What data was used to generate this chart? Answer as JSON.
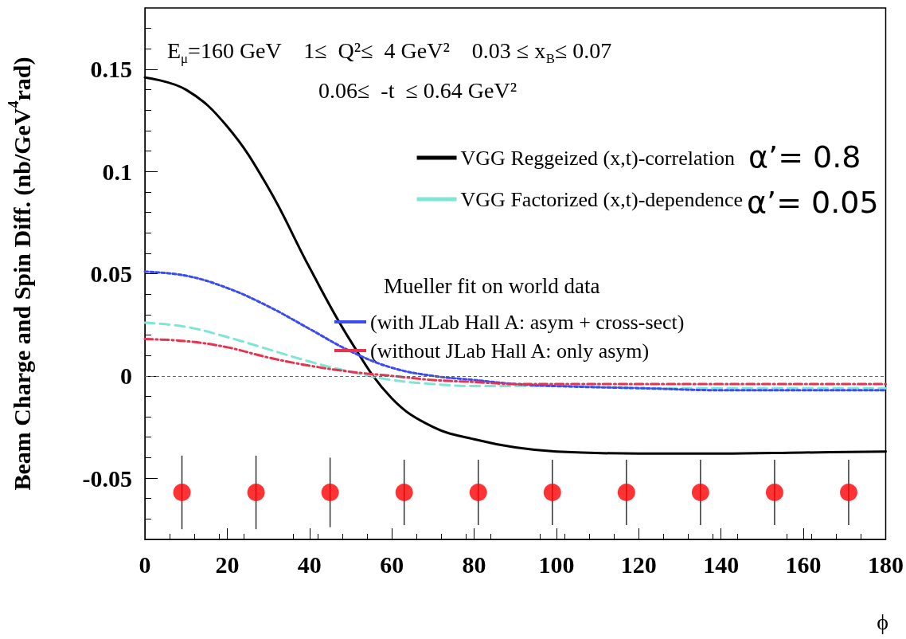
{
  "chart_data": {
    "type": "line",
    "title": "E$_{μ}$=160 GeV    1≤  Q²≤  4 GeV²    0.03 ≤ x$_{B}$≤ 0.07",
    "subtitle": "0.06≤  -t  ≤ 0.64 GeV²",
    "xlabel": "ϕ",
    "ylabel": "Beam Charge and Spin Diff. (nb/GeV$^{4}$rad)",
    "annotations": [
      "α’= 0.8",
      "α’= 0.05",
      "Mueller fit on world data"
    ],
    "xlim": [
      0,
      180
    ],
    "xticks": [
      0,
      20,
      40,
      60,
      80,
      100,
      120,
      140,
      160,
      180
    ],
    "ylim": [
      -0.08,
      0.18
    ],
    "yticks": [
      -0.05,
      0,
      0.05,
      0.1,
      0.15
    ],
    "grid": false,
    "legend": "top right",
    "marker": "none",
    "ref_lines": [
      {
        "axis": "y",
        "value": 0,
        "color": "#666666",
        "line_style": "dotted"
      }
    ],
    "series": [
      {
        "name": "VGG Reggeized (x,t)-correlation",
        "color": "#000000",
        "line_style": "solid",
        "x": [
          0,
          10,
          20,
          30,
          40,
          50,
          60,
          70,
          80,
          90,
          100,
          120,
          140,
          160,
          180
        ],
        "values": [
          0.146,
          0.14,
          0.122,
          0.092,
          0.053,
          0.017,
          -0.011,
          -0.025,
          -0.031,
          -0.035,
          -0.037,
          -0.038,
          -0.038,
          -0.0375,
          -0.037
        ]
      },
      {
        "name": "VGG Factorized (x,t)-dependence",
        "color": "#7fe5d5",
        "line_style": "dashed",
        "x": [
          0,
          10,
          20,
          30,
          40,
          50,
          60,
          70,
          80,
          90,
          100,
          120,
          140,
          160,
          180
        ],
        "values": [
          0.026,
          0.024,
          0.019,
          0.013,
          0.007,
          0.002,
          -0.002,
          -0.004,
          -0.005,
          -0.005,
          -0.005,
          -0.006,
          -0.006,
          -0.006,
          -0.006
        ]
      },
      {
        "name": "(with JLab Hall A: asym + cross-sect)",
        "color": "#3a4cf0",
        "line_style": "dotted",
        "x": [
          0,
          10,
          20,
          30,
          40,
          50,
          60,
          70,
          80,
          90,
          100,
          120,
          140,
          160,
          180
        ],
        "values": [
          0.051,
          0.049,
          0.043,
          0.034,
          0.023,
          0.012,
          0.004,
          0.0,
          -0.002,
          -0.004,
          -0.005,
          -0.006,
          -0.007,
          -0.007,
          -0.007
        ]
      },
      {
        "name": "(without JLab Hall A: only asym)",
        "color": "#e8334f",
        "line_style": "dashdot",
        "x": [
          0,
          10,
          20,
          30,
          40,
          50,
          60,
          70,
          80,
          90,
          100,
          120,
          140,
          160,
          180
        ],
        "values": [
          0.018,
          0.017,
          0.014,
          0.009,
          0.005,
          0.002,
          0.0,
          -0.002,
          -0.003,
          -0.004,
          -0.004,
          -0.004,
          -0.004,
          -0.004,
          -0.004
        ]
      },
      {
        "type": "scatter",
        "color": "#ff0000",
        "marker": "circle",
        "x": [
          9,
          27,
          45,
          63,
          81,
          99,
          117,
          135,
          153,
          171
        ],
        "values": [
          -0.057,
          -0.057,
          -0.057,
          -0.057,
          -0.057,
          -0.057,
          -0.057,
          -0.057,
          -0.057,
          -0.057
        ],
        "errors": [
          0.018,
          0.018,
          0.017,
          0.016,
          0.016,
          0.016,
          0.016,
          0.016,
          0.016,
          0.016
        ]
      }
    ]
  }
}
